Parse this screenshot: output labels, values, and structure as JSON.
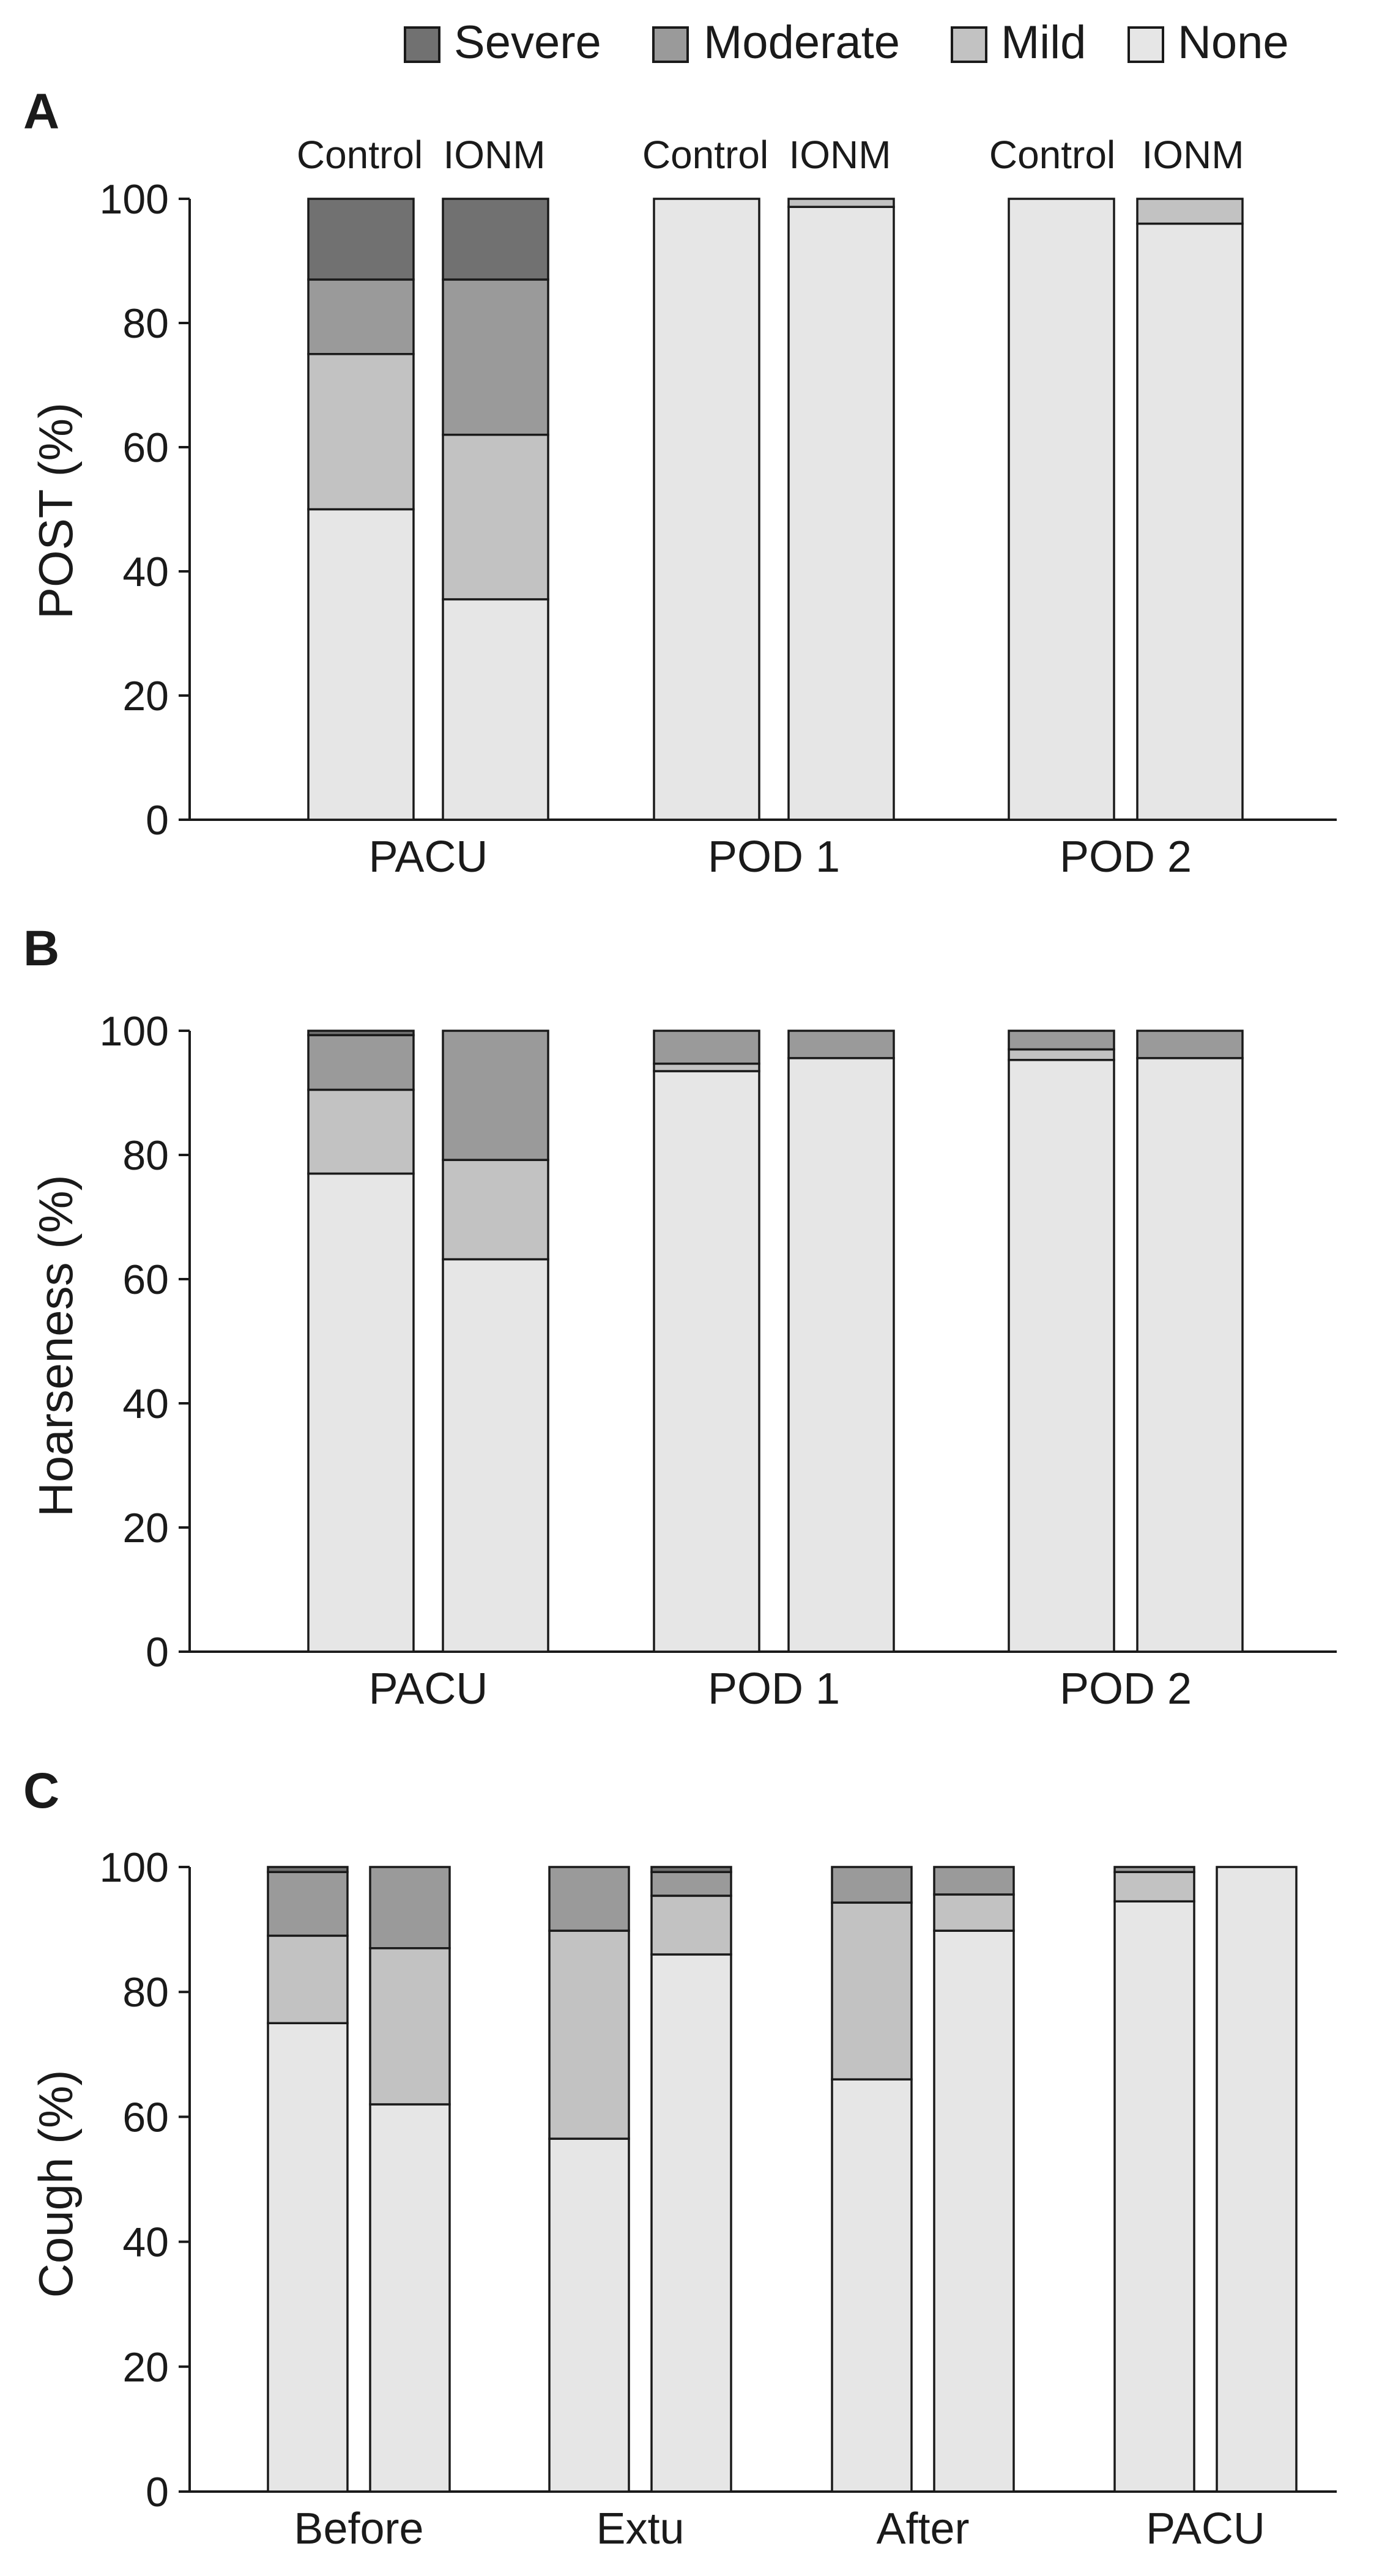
{
  "legend": [
    {
      "label": "Severe",
      "color": "#717171"
    },
    {
      "label": "Moderate",
      "color": "#9a9a9a"
    },
    {
      "label": "Mild",
      "color": "#c2c2c2"
    },
    {
      "label": "None",
      "color": "#e6e6e6"
    }
  ],
  "chart_data": [
    {
      "type": "bar",
      "stacked": true,
      "panel_label": "A",
      "ylabel": "POST (%)",
      "ylim": [
        0,
        100
      ],
      "yticks": [
        0,
        20,
        40,
        60,
        80,
        100
      ],
      "categories": [
        "PACU",
        "POD 1",
        "POD 2"
      ],
      "group_labels": [
        "Control",
        "IONM"
      ],
      "bars": [
        {
          "category": "PACU",
          "group": "Control",
          "none": 50,
          "mild": 25,
          "moderate": 12,
          "severe": 13
        },
        {
          "category": "PACU",
          "group": "IONM",
          "none": 35.5,
          "mild": 26.5,
          "moderate": 25,
          "severe": 13
        },
        {
          "category": "POD 1",
          "group": "Control",
          "none": 100,
          "mild": 0,
          "moderate": 0,
          "severe": 0
        },
        {
          "category": "POD 1",
          "group": "IONM",
          "none": 98.7,
          "mild": 1.3,
          "moderate": 0,
          "severe": 0
        },
        {
          "category": "POD 2",
          "group": "Control",
          "none": 100,
          "mild": 0,
          "moderate": 0,
          "severe": 0
        },
        {
          "category": "POD 2",
          "group": "IONM",
          "none": 96,
          "mild": 4,
          "moderate": 0,
          "severe": 0
        }
      ]
    },
    {
      "type": "bar",
      "stacked": true,
      "panel_label": "B",
      "ylabel": "Hoarseness (%)",
      "ylim": [
        0,
        100
      ],
      "yticks": [
        0,
        20,
        40,
        60,
        80,
        100
      ],
      "categories": [
        "PACU",
        "POD 1",
        "POD 2"
      ],
      "bars": [
        {
          "category": "PACU",
          "group": "Control",
          "none": 77,
          "mild": 13.5,
          "moderate": 8.8,
          "severe": 0.7
        },
        {
          "category": "PACU",
          "group": "IONM",
          "none": 63.2,
          "mild": 16,
          "moderate": 20.8,
          "severe": 0
        },
        {
          "category": "POD 1",
          "group": "Control",
          "none": 93.5,
          "mild": 1.2,
          "moderate": 5.3,
          "severe": 0
        },
        {
          "category": "POD 1",
          "group": "IONM",
          "none": 95.6,
          "mild": 0,
          "moderate": 4.4,
          "severe": 0
        },
        {
          "category": "POD 2",
          "group": "Control",
          "none": 95.3,
          "mild": 1.7,
          "moderate": 3,
          "severe": 0
        },
        {
          "category": "POD 2",
          "group": "IONM",
          "none": 95.6,
          "mild": 0,
          "moderate": 4.4,
          "severe": 0
        }
      ]
    },
    {
      "type": "bar",
      "stacked": true,
      "panel_label": "C",
      "ylabel": "Cough (%)",
      "ylim": [
        0,
        100
      ],
      "yticks": [
        0,
        20,
        40,
        60,
        80,
        100
      ],
      "categories": [
        "Before",
        "Extu",
        "After",
        "PACU"
      ],
      "bars": [
        {
          "category": "Before",
          "group": "Control",
          "none": 75,
          "mild": 14,
          "moderate": 10.2,
          "severe": 0.8
        },
        {
          "category": "Before",
          "group": "IONM",
          "none": 62,
          "mild": 25,
          "moderate": 13,
          "severe": 0
        },
        {
          "category": "Extu",
          "group": "Control",
          "none": 56.5,
          "mild": 33.3,
          "moderate": 10.2,
          "severe": 0
        },
        {
          "category": "Extu",
          "group": "IONM",
          "none": 86,
          "mild": 9.4,
          "moderate": 3.8,
          "severe": 0.8
        },
        {
          "category": "After",
          "group": "Control",
          "none": 66,
          "mild": 28.3,
          "moderate": 5.7,
          "severe": 0
        },
        {
          "category": "After",
          "group": "IONM",
          "none": 89.8,
          "mild": 5.8,
          "moderate": 4.4,
          "severe": 0
        },
        {
          "category": "PACU",
          "group": "Control",
          "none": 94.5,
          "mild": 4.7,
          "moderate": 0.8,
          "severe": 0
        },
        {
          "category": "PACU",
          "group": "IONM",
          "none": 100,
          "mild": 0,
          "moderate": 0,
          "severe": 0
        }
      ]
    }
  ]
}
